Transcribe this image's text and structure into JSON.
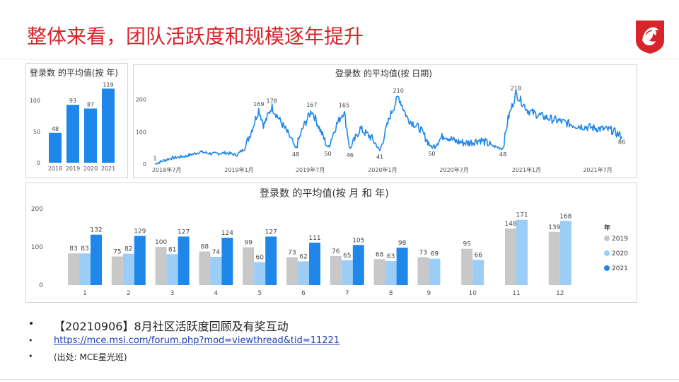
{
  "slide": {
    "title": "整体来看，团队活跃度和规模逐年提升"
  },
  "colors": {
    "title": "#d8242b",
    "c2019": "#c8c8c8",
    "c2020": "#9bcdf7",
    "c2021": "#1f87ea",
    "line": "#1f87ea"
  },
  "bullets": [
    {
      "text": "【20210906】8月社区活跃度回顾及有奖互动"
    },
    {
      "text": "https://mce.msi.com/forum.php?mod=viewthread&tid=11221"
    },
    {
      "text": "(出处: MCE星光班)"
    }
  ],
  "chart_data": [
    {
      "type": "bar",
      "title": "登录数 的平均值(按 年)",
      "categories": [
        "2018",
        "2019",
        "2020",
        "2021"
      ],
      "values": [
        48,
        93,
        87,
        119
      ],
      "y_ticks": [
        0,
        50,
        100
      ],
      "ylim": [
        0,
        125
      ]
    },
    {
      "type": "line",
      "title": "登录数 的平均值(按 日期)",
      "x_ticks": [
        "2018年7月",
        "2019年1月",
        "2019年7月",
        "2020年1月",
        "2020年7月",
        "2021年1月",
        "2021年7月"
      ],
      "y_ticks": [
        0,
        100,
        200
      ],
      "ylim": [
        0,
        230
      ],
      "anchors": [
        {
          "x": "2018-06-01",
          "y": 1
        },
        {
          "x": "2018-07-10",
          "y": 18
        },
        {
          "x": "2018-08-20",
          "y": 25
        },
        {
          "x": "2018-09-25",
          "y": 38
        },
        {
          "x": "2018-10-25",
          "y": 32
        },
        {
          "x": "2018-11-30",
          "y": 35
        },
        {
          "x": "2018-12-25",
          "y": 28
        },
        {
          "x": "2019-01-15",
          "y": 48
        },
        {
          "x": "2019-02-05",
          "y": 115
        },
        {
          "x": "2019-02-20",
          "y": 169
        },
        {
          "x": "2019-03-05",
          "y": 120
        },
        {
          "x": "2019-03-25",
          "y": 178
        },
        {
          "x": "2019-04-20",
          "y": 125
        },
        {
          "x": "2019-05-10",
          "y": 85
        },
        {
          "x": "2019-05-25",
          "y": 48
        },
        {
          "x": "2019-06-15",
          "y": 120
        },
        {
          "x": "2019-07-05",
          "y": 167
        },
        {
          "x": "2019-07-25",
          "y": 110
        },
        {
          "x": "2019-08-15",
          "y": 50
        },
        {
          "x": "2019-09-05",
          "y": 120
        },
        {
          "x": "2019-09-25",
          "y": 165
        },
        {
          "x": "2019-10-10",
          "y": 46
        },
        {
          "x": "2019-11-05",
          "y": 110
        },
        {
          "x": "2019-12-05",
          "y": 80
        },
        {
          "x": "2019-12-25",
          "y": 41
        },
        {
          "x": "2020-01-20",
          "y": 150
        },
        {
          "x": "2020-02-10",
          "y": 210
        },
        {
          "x": "2020-03-05",
          "y": 140
        },
        {
          "x": "2020-04-05",
          "y": 110
        },
        {
          "x": "2020-05-05",
          "y": 50
        },
        {
          "x": "2020-06-05",
          "y": 90
        },
        {
          "x": "2020-07-05",
          "y": 70
        },
        {
          "x": "2020-08-05",
          "y": 65
        },
        {
          "x": "2020-09-05",
          "y": 75
        },
        {
          "x": "2020-10-10",
          "y": 55
        },
        {
          "x": "2020-11-02",
          "y": 48
        },
        {
          "x": "2020-11-15",
          "y": 140
        },
        {
          "x": "2020-12-05",
          "y": 218
        },
        {
          "x": "2021-01-05",
          "y": 165
        },
        {
          "x": "2021-02-05",
          "y": 150
        },
        {
          "x": "2021-03-05",
          "y": 140
        },
        {
          "x": "2021-04-05",
          "y": 130
        },
        {
          "x": "2021-05-05",
          "y": 120
        },
        {
          "x": "2021-06-05",
          "y": 115
        },
        {
          "x": "2021-07-05",
          "y": 110
        },
        {
          "x": "2021-08-05",
          "y": 105
        },
        {
          "x": "2021-08-31",
          "y": 86
        }
      ],
      "value_labels": [
        {
          "x": "2018-06-01",
          "y": 1,
          "label": "1",
          "pos": "above"
        },
        {
          "x": "2019-02-20",
          "y": 169,
          "label": "169",
          "pos": "above"
        },
        {
          "x": "2019-03-25",
          "y": 178,
          "label": "178",
          "pos": "above"
        },
        {
          "x": "2019-05-25",
          "y": 48,
          "label": "48",
          "pos": "below"
        },
        {
          "x": "2019-07-05",
          "y": 167,
          "label": "167",
          "pos": "above"
        },
        {
          "x": "2019-08-15",
          "y": 50,
          "label": "50",
          "pos": "below"
        },
        {
          "x": "2019-09-25",
          "y": 165,
          "label": "165",
          "pos": "above"
        },
        {
          "x": "2019-10-10",
          "y": 46,
          "label": "46",
          "pos": "below"
        },
        {
          "x": "2019-12-25",
          "y": 41,
          "label": "41",
          "pos": "below"
        },
        {
          "x": "2020-02-10",
          "y": 210,
          "label": "210",
          "pos": "above"
        },
        {
          "x": "2020-05-05",
          "y": 50,
          "label": "50",
          "pos": "below"
        },
        {
          "x": "2020-11-02",
          "y": 48,
          "label": "48",
          "pos": "below"
        },
        {
          "x": "2020-12-05",
          "y": 218,
          "label": "218",
          "pos": "above"
        },
        {
          "x": "2021-08-31",
          "y": 86,
          "label": "86",
          "pos": "below"
        }
      ]
    },
    {
      "type": "bar",
      "title": "登录数 的平均值(按 月 和 年)",
      "categories": [
        "1",
        "2",
        "3",
        "4",
        "5",
        "6",
        "7",
        "8",
        "9",
        "10",
        "11",
        "12"
      ],
      "y_ticks": [
        0,
        100,
        200
      ],
      "ylim": [
        0,
        200
      ],
      "legend_title": "年",
      "legend_position": "right",
      "series": [
        {
          "name": "2019",
          "values": [
            83,
            75,
            100,
            88,
            99,
            73,
            76,
            68,
            73,
            95,
            148,
            139
          ]
        },
        {
          "name": "2020",
          "values": [
            83,
            82,
            81,
            74,
            60,
            62,
            65,
            63,
            69,
            66,
            171,
            168
          ]
        },
        {
          "name": "2021",
          "values": [
            132,
            129,
            127,
            124,
            127,
            111,
            105,
            98,
            null,
            null,
            null,
            null
          ]
        }
      ]
    }
  ]
}
